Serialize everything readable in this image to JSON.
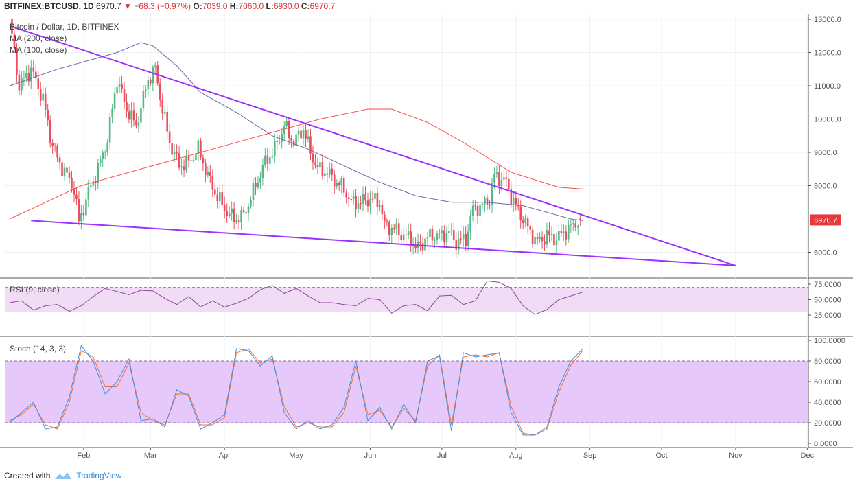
{
  "header": {
    "symbol": "BITFINEX:BTCUSD, 1D",
    "last": "6970.7",
    "change": "−68.3 (−0.97%)",
    "o_label": "O:",
    "o": "7039.0",
    "h_label": "H:",
    "h": "7060.0",
    "l_label": "L:",
    "l": "6930.0",
    "c_label": "C:",
    "c": "6970.7"
  },
  "legend": {
    "title": "Bitcoin / Dollar, 1D, BITFINEX",
    "ma200": "MA (200, close)",
    "ma100": "MA (100, close)",
    "rsi": "RSI (9, close)",
    "stoch": "Stoch (14, 3, 3)"
  },
  "footer": {
    "created_with": "Created with",
    "brand": "TradingView"
  },
  "colors": {
    "up": "#53b987",
    "down": "#eb4d5c",
    "trend": "#9b30ff",
    "ma200": "#ff4a4a",
    "ma100": "#6666aa",
    "rsi_line": "#9040a0",
    "rsi_band": "#f0dcf5",
    "stoch_k": "#3d8fe0",
    "stoch_d": "#f07030",
    "stoch_band": "#e6c8fa",
    "price_tag": "#e8383b"
  },
  "chart_data": [
    {
      "type": "candlestick",
      "x_tick_labels": [
        "Feb",
        "Mar",
        "Apr",
        "May",
        "Jun",
        "Jul",
        "Aug",
        "Sep",
        "Oct",
        "Nov",
        "Dec"
      ],
      "x_tick_days": [
        31,
        59,
        90,
        120,
        151,
        181,
        212,
        243,
        273,
        304,
        334
      ],
      "y_ticks": [
        "13000.0",
        "12000.0",
        "11000.0",
        "10000.0",
        "9000.0",
        "8000.0",
        "6000.0"
      ],
      "ylim": [
        5400,
        13000
      ],
      "last_price_tag": "6970.7",
      "close_path": [
        [
          0,
          13000
        ],
        [
          4,
          11000
        ],
        [
          9,
          11500
        ],
        [
          14,
          10600
        ],
        [
          17,
          9500
        ],
        [
          20,
          8800
        ],
        [
          24,
          8300
        ],
        [
          27,
          7900
        ],
        [
          29,
          6900
        ],
        [
          33,
          7800
        ],
        [
          37,
          8500
        ],
        [
          41,
          9400
        ],
        [
          45,
          11200
        ],
        [
          49,
          10300
        ],
        [
          53,
          9800
        ],
        [
          58,
          11200
        ],
        [
          61,
          11500
        ],
        [
          64,
          10300
        ],
        [
          67,
          9300
        ],
        [
          71,
          8600
        ],
        [
          75,
          8700
        ],
        [
          79,
          9100
        ],
        [
          83,
          8300
        ],
        [
          86,
          7800
        ],
        [
          90,
          7300
        ],
        [
          94,
          7000
        ],
        [
          98,
          7100
        ],
        [
          103,
          8000
        ],
        [
          107,
          8700
        ],
        [
          111,
          9100
        ],
        [
          115,
          9800
        ],
        [
          119,
          9300
        ],
        [
          123,
          9700
        ],
        [
          126,
          9000
        ],
        [
          129,
          8500
        ],
        [
          133,
          8400
        ],
        [
          137,
          8100
        ],
        [
          140,
          7900
        ],
        [
          143,
          7500
        ],
        [
          147,
          7500
        ],
        [
          151,
          7600
        ],
        [
          155,
          7500
        ],
        [
          157,
          6800
        ],
        [
          161,
          6700
        ],
        [
          165,
          6500
        ],
        [
          168,
          6400
        ],
        [
          170,
          6100
        ],
        [
          173,
          6300
        ],
        [
          176,
          6500
        ],
        [
          180,
          6500
        ],
        [
          184,
          6600
        ],
        [
          187,
          6300
        ],
        [
          191,
          6400
        ],
        [
          194,
          7300
        ],
        [
          198,
          7400
        ],
        [
          201,
          7600
        ],
        [
          203,
          8300
        ],
        [
          206,
          8200
        ],
        [
          208,
          8100
        ],
        [
          211,
          7500
        ],
        [
          215,
          7000
        ],
        [
          218,
          6600
        ],
        [
          221,
          6300
        ],
        [
          225,
          6500
        ],
        [
          229,
          6400
        ],
        [
          232,
          6600
        ],
        [
          236,
          6800
        ],
        [
          239,
          7000
        ]
      ],
      "ma200_path": [
        [
          0,
          7000
        ],
        [
          15,
          7500
        ],
        [
          30,
          8000
        ],
        [
          60,
          8600
        ],
        [
          90,
          9200
        ],
        [
          110,
          9600
        ],
        [
          130,
          10000
        ],
        [
          150,
          10300
        ],
        [
          160,
          10300
        ],
        [
          175,
          9900
        ],
        [
          190,
          9300
        ],
        [
          210,
          8400
        ],
        [
          230,
          7950
        ],
        [
          240,
          7900
        ]
      ],
      "ma100_path": [
        [
          0,
          11000
        ],
        [
          20,
          11500
        ],
        [
          45,
          12000
        ],
        [
          55,
          12300
        ],
        [
          60,
          12200
        ],
        [
          70,
          11600
        ],
        [
          80,
          10800
        ],
        [
          95,
          10200
        ],
        [
          110,
          9500
        ],
        [
          125,
          9100
        ],
        [
          140,
          8600
        ],
        [
          155,
          8100
        ],
        [
          170,
          7700
        ],
        [
          185,
          7500
        ],
        [
          200,
          7500
        ],
        [
          215,
          7400
        ],
        [
          225,
          7200
        ],
        [
          235,
          7000
        ],
        [
          240,
          6950
        ]
      ],
      "trendline_upper": [
        [
          0,
          12800
        ],
        [
          304,
          5600
        ]
      ],
      "trendline_lower": [
        [
          9,
          6950
        ],
        [
          304,
          5600
        ]
      ]
    },
    {
      "type": "line",
      "name": "RSI (9, close)",
      "y_ticks": [
        "75.0000",
        "50.0000",
        "25.0000"
      ],
      "ylim": [
        17,
        85
      ],
      "band": [
        30,
        70
      ],
      "x": [
        0,
        5,
        10,
        15,
        20,
        25,
        30,
        35,
        40,
        45,
        50,
        55,
        60,
        65,
        70,
        75,
        80,
        85,
        90,
        95,
        100,
        105,
        110,
        115,
        120,
        125,
        130,
        135,
        140,
        145,
        150,
        155,
        160,
        165,
        170,
        175,
        180,
        185,
        190,
        195,
        200,
        205,
        210,
        215,
        220,
        225,
        230,
        235,
        240
      ],
      "values": [
        45,
        48,
        33,
        40,
        42,
        31,
        40,
        55,
        68,
        63,
        58,
        65,
        64,
        52,
        42,
        55,
        38,
        48,
        38,
        44,
        52,
        66,
        73,
        60,
        68,
        56,
        45,
        45,
        42,
        40,
        52,
        50,
        28,
        40,
        42,
        32,
        56,
        57,
        42,
        48,
        80,
        78,
        68,
        40,
        26,
        34,
        50,
        56,
        62
      ]
    },
    {
      "type": "line",
      "name": "Stoch (14, 3, 3)",
      "y_ticks": [
        "100.0000",
        "80.0000",
        "60.0000",
        "40.0000",
        "20.0000",
        "0.0000"
      ],
      "ylim": [
        0,
        100
      ],
      "band": [
        20,
        80
      ],
      "x": [
        0,
        5,
        10,
        15,
        20,
        25,
        30,
        35,
        40,
        45,
        50,
        55,
        60,
        65,
        70,
        75,
        80,
        85,
        90,
        95,
        100,
        105,
        110,
        115,
        120,
        125,
        130,
        135,
        140,
        145,
        150,
        155,
        160,
        165,
        170,
        175,
        180,
        185,
        190,
        195,
        200,
        205,
        210,
        215,
        220,
        225,
        230,
        235,
        240
      ],
      "k_values": [
        20,
        30,
        40,
        14,
        16,
        45,
        95,
        80,
        48,
        60,
        82,
        22,
        24,
        16,
        52,
        46,
        14,
        20,
        28,
        92,
        90,
        75,
        85,
        30,
        14,
        22,
        14,
        18,
        35,
        80,
        22,
        35,
        14,
        38,
        20,
        80,
        85,
        12,
        88,
        84,
        86,
        88,
        30,
        8,
        8,
        16,
        55,
        80,
        92
      ],
      "d_values": [
        22,
        28,
        38,
        18,
        14,
        40,
        90,
        84,
        55,
        55,
        78,
        30,
        22,
        18,
        48,
        48,
        18,
        18,
        25,
        88,
        92,
        78,
        82,
        36,
        16,
        20,
        16,
        16,
        30,
        75,
        28,
        32,
        16,
        34,
        22,
        75,
        86,
        18,
        84,
        86,
        84,
        88,
        36,
        10,
        8,
        14,
        50,
        76,
        90
      ]
    }
  ]
}
